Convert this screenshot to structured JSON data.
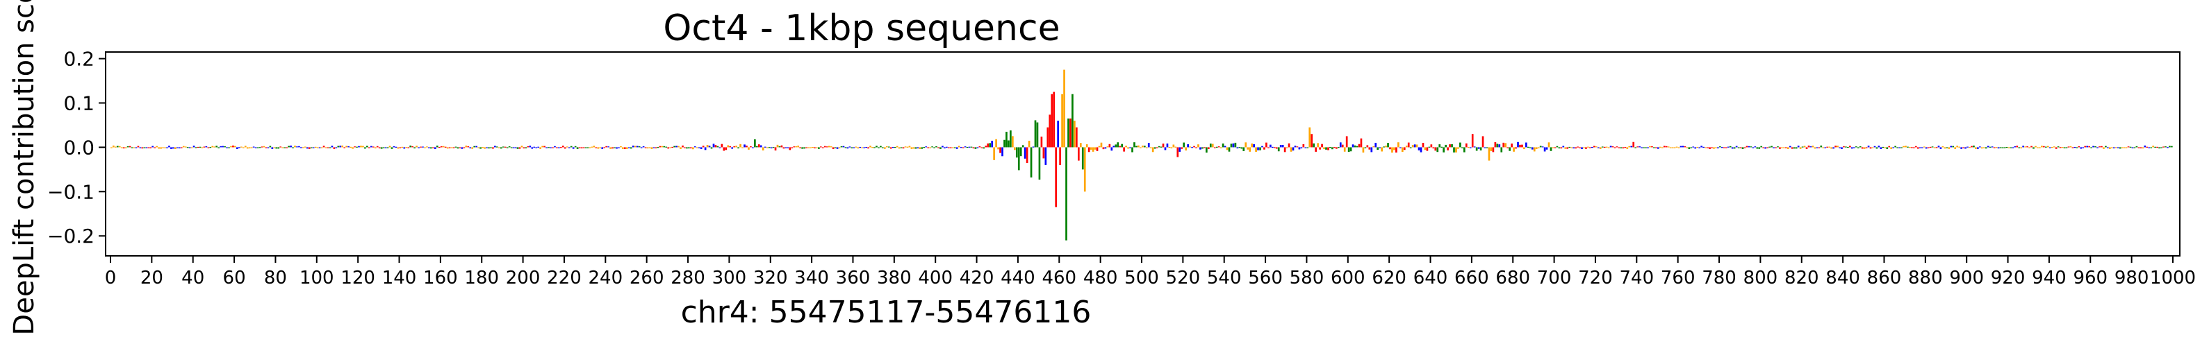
{
  "chart_data": {
    "type": "bar",
    "title": "Oct4 - 1kbp sequence",
    "xlabel": "chr4: 55475117-55476116",
    "ylabel": "DeepLift contribution score",
    "xlim": [
      0,
      1000
    ],
    "ylim": [
      -0.245,
      0.215
    ],
    "x_ticks": [
      0,
      20,
      40,
      60,
      80,
      100,
      120,
      140,
      160,
      180,
      200,
      220,
      240,
      260,
      280,
      300,
      320,
      340,
      360,
      380,
      400,
      420,
      440,
      460,
      480,
      500,
      520,
      540,
      560,
      580,
      600,
      620,
      640,
      660,
      680,
      700,
      720,
      740,
      760,
      780,
      800,
      820,
      840,
      860,
      880,
      900,
      920,
      940,
      960,
      980,
      1000
    ],
    "y_ticks": [
      -0.2,
      -0.1,
      0.0,
      0.1,
      0.2
    ],
    "y_tick_labels": [
      "−0.2",
      "−0.1",
      "0.0",
      "0.1",
      "0.2"
    ],
    "grid": false,
    "legend": "none",
    "base_colors": {
      "A": "#008000",
      "C": "#0000ff",
      "G": "#ffa500",
      "T": "#ff0000"
    },
    "series": [
      {
        "values_by_region": [
          {
            "x": [
              0,
              280
            ],
            "base_amplitude": 0.004
          },
          {
            "x": [
              280,
              330
            ],
            "base_amplitude": 0.008
          },
          {
            "x": [
              425,
              440
            ],
            "base_amplitude": 0.03
          },
          {
            "x": [
              440,
              470
            ],
            "base_amplitude": 0.08
          },
          {
            "x": [
              470,
              700
            ],
            "base_amplitude": 0.012
          },
          {
            "x": [
              700,
              1000
            ],
            "base_amplitude": 0.004
          }
        ],
        "peaks": [
          {
            "x": 434,
            "base": "A",
            "value": 0.035
          },
          {
            "x": 436,
            "base": "A",
            "value": 0.038
          },
          {
            "x": 441,
            "base": "A",
            "value": -0.02
          },
          {
            "x": 452,
            "base": "T",
            "value": -0.025
          },
          {
            "x": 456,
            "base": "T",
            "value": 0.12
          },
          {
            "x": 457,
            "base": "T",
            "value": 0.125
          },
          {
            "x": 458,
            "base": "T",
            "value": -0.135
          },
          {
            "x": 459,
            "base": "C",
            "value": 0.06
          },
          {
            "x": 460,
            "base": "T",
            "value": -0.04
          },
          {
            "x": 461,
            "base": "G",
            "value": 0.12
          },
          {
            "x": 462,
            "base": "G",
            "value": 0.175
          },
          {
            "x": 463,
            "base": "A",
            "value": -0.21
          },
          {
            "x": 464,
            "base": "A",
            "value": 0.065
          },
          {
            "x": 465,
            "base": "T",
            "value": 0.065
          },
          {
            "x": 466,
            "base": "A",
            "value": 0.12
          },
          {
            "x": 467,
            "base": "G",
            "value": 0.06
          },
          {
            "x": 468,
            "base": "T",
            "value": 0.045
          },
          {
            "x": 469,
            "base": "T",
            "value": -0.03
          },
          {
            "x": 471,
            "base": "A",
            "value": -0.05
          },
          {
            "x": 472,
            "base": "G",
            "value": -0.1
          },
          {
            "x": 312,
            "base": "A",
            "value": 0.018
          },
          {
            "x": 517,
            "base": "T",
            "value": -0.022
          },
          {
            "x": 581,
            "base": "G",
            "value": 0.045
          },
          {
            "x": 582,
            "base": "T",
            "value": 0.03
          },
          {
            "x": 599,
            "base": "T",
            "value": 0.025
          },
          {
            "x": 606,
            "base": "T",
            "value": 0.02
          },
          {
            "x": 660,
            "base": "T",
            "value": 0.03
          },
          {
            "x": 665,
            "base": "T",
            "value": 0.025
          },
          {
            "x": 668,
            "base": "G",
            "value": -0.03
          },
          {
            "x": 738,
            "base": "T",
            "value": 0.012
          }
        ]
      }
    ]
  }
}
